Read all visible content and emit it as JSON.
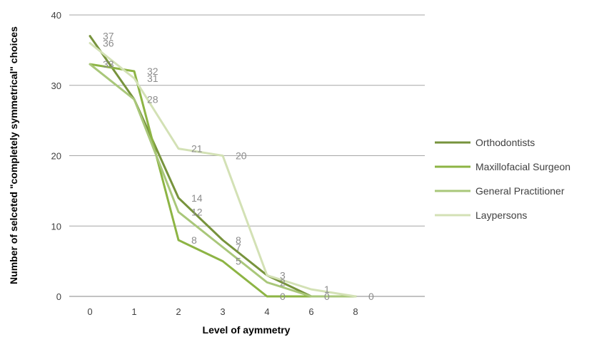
{
  "chart_data": {
    "type": "line",
    "title": "",
    "xlabel": "Level of aymmetry",
    "ylabel": "Number of selceted \"completely symmetrical\" choices",
    "xticks": [
      0,
      1,
      2,
      3,
      4,
      6,
      8
    ],
    "ylim": [
      0,
      40
    ],
    "yticks": [
      0,
      10,
      20,
      30,
      40
    ],
    "grid": "horizontal",
    "legend_position": "right",
    "series": [
      {
        "name": "Orthodontists",
        "color": "#77933c",
        "points": [
          [
            0,
            37
          ],
          [
            1,
            28
          ],
          [
            2,
            14
          ],
          [
            3,
            8
          ],
          [
            4,
            3
          ],
          [
            6,
            0
          ],
          [
            8,
            0
          ]
        ],
        "labels": [
          {
            "x": 0,
            "y": 37,
            "text": "37"
          },
          {
            "x": 2,
            "y": 14,
            "text": "14"
          },
          {
            "x": 3,
            "y": 8,
            "text": "8"
          },
          {
            "x": 4,
            "y": 3,
            "text": "3"
          }
        ]
      },
      {
        "name": "Maxillofacial Surgeon",
        "color": "#8db444",
        "points": [
          [
            0,
            33
          ],
          [
            1,
            32
          ],
          [
            2,
            8
          ],
          [
            3,
            5
          ],
          [
            4,
            0
          ],
          [
            6,
            0
          ],
          [
            8,
            0
          ]
        ],
        "labels": [
          {
            "x": 0,
            "y": 33,
            "text": "33"
          },
          {
            "x": 1,
            "y": 32,
            "text": "32"
          },
          {
            "x": 2,
            "y": 8,
            "text": "8"
          },
          {
            "x": 3,
            "y": 5,
            "text": "5"
          },
          {
            "x": 4,
            "y": 0,
            "text": "0"
          }
        ]
      },
      {
        "name": "General Practitioner",
        "color": "#a9c77a",
        "points": [
          [
            0,
            33
          ],
          [
            1,
            28
          ],
          [
            2,
            12
          ],
          [
            3,
            7
          ],
          [
            4,
            2
          ],
          [
            6,
            0
          ],
          [
            8,
            0
          ]
        ],
        "labels": [
          {
            "x": 1,
            "y": 28,
            "text": "28"
          },
          {
            "x": 2,
            "y": 12,
            "text": "12"
          },
          {
            "x": 3,
            "y": 7,
            "text": "7"
          },
          {
            "x": 4,
            "y": 2,
            "text": "2"
          },
          {
            "x": 6,
            "y": 0,
            "text": "0"
          }
        ]
      },
      {
        "name": "Laypersons",
        "color": "#d3e1b5",
        "points": [
          [
            0,
            36
          ],
          [
            1,
            31
          ],
          [
            2,
            21
          ],
          [
            3,
            20
          ],
          [
            4,
            3
          ],
          [
            6,
            1
          ],
          [
            8,
            0
          ]
        ],
        "labels": [
          {
            "x": 0,
            "y": 36,
            "text": "36"
          },
          {
            "x": 1,
            "y": 31,
            "text": "31"
          },
          {
            "x": 2,
            "y": 21,
            "text": "21"
          },
          {
            "x": 3,
            "y": 20,
            "text": "20"
          },
          {
            "x": 6,
            "y": 1,
            "text": "1"
          },
          {
            "x": 8,
            "y": 0,
            "text": "0"
          }
        ]
      }
    ]
  }
}
